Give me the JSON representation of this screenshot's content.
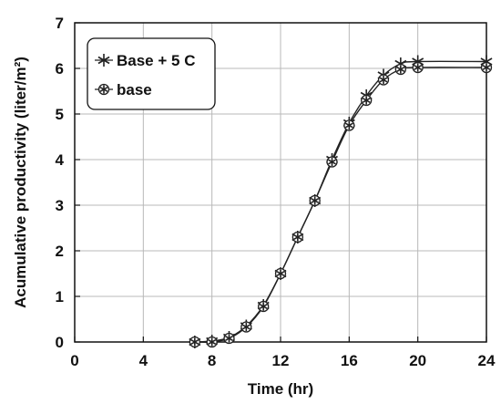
{
  "chart_data": {
    "type": "line",
    "title": "",
    "xlabel": "Time (hr)",
    "ylabel": "Acumulative productivity  (liter/m²)",
    "xlim": [
      0,
      24
    ],
    "ylim": [
      0,
      7
    ],
    "xticks": [
      0,
      4,
      8,
      12,
      16,
      20,
      24
    ],
    "yticks": [
      0,
      1,
      2,
      3,
      4,
      5,
      6,
      7
    ],
    "grid": true,
    "legend_position": "top-left",
    "series": [
      {
        "name": "Base + 5  C",
        "marker": "asterisk",
        "color": "#222222",
        "x": [
          7,
          8,
          9,
          10,
          11,
          12,
          13,
          14,
          15,
          16,
          17,
          18,
          19,
          20,
          24
        ],
        "y": [
          0.0,
          0.02,
          0.1,
          0.35,
          0.8,
          1.5,
          2.3,
          3.1,
          4.0,
          4.8,
          5.4,
          5.85,
          6.1,
          6.15,
          6.15
        ]
      },
      {
        "name": "base",
        "marker": "circle-star",
        "color": "#222222",
        "x": [
          7,
          8,
          9,
          10,
          11,
          12,
          13,
          14,
          15,
          16,
          17,
          18,
          19,
          20,
          24
        ],
        "y": [
          0.0,
          0.0,
          0.08,
          0.33,
          0.78,
          1.5,
          2.3,
          3.1,
          3.95,
          4.75,
          5.3,
          5.75,
          5.98,
          6.02,
          6.02
        ]
      }
    ]
  }
}
